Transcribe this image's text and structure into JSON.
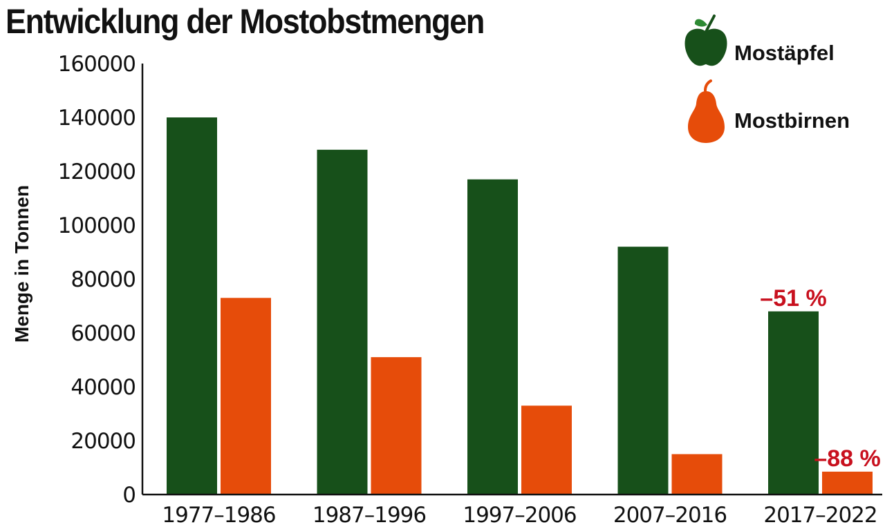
{
  "chart_data": {
    "type": "bar",
    "title": "Entwicklung der Mostobstmengen",
    "ylabel": "Menge in Tonnen",
    "xlabel": "",
    "ylim": [
      0,
      160000
    ],
    "yticks": [
      "0",
      "20000",
      "40000",
      "60000",
      "80000",
      "100000",
      "120000",
      "140000",
      "160000"
    ],
    "categories": [
      "1977–1986",
      "1987–1996",
      "1997–2006",
      "2007–2016",
      "2017–2022"
    ],
    "series": [
      {
        "name": "Mostäpfel",
        "icon": "apple-icon",
        "color": "#17501a",
        "values": [
          140000,
          128000,
          117000,
          92000,
          68000
        ]
      },
      {
        "name": "Mostbirnen",
        "icon": "pear-icon",
        "color": "#e64c0a",
        "values": [
          73000,
          51000,
          33000,
          15000,
          8500
        ]
      }
    ],
    "annotations": [
      {
        "text": "–51 %",
        "series": 0,
        "category": 4,
        "color": "#c8101e"
      },
      {
        "text": "–88 %",
        "series": 1,
        "category": 4,
        "color": "#c8101e"
      }
    ],
    "legend_position": "top-right",
    "grid": false
  }
}
